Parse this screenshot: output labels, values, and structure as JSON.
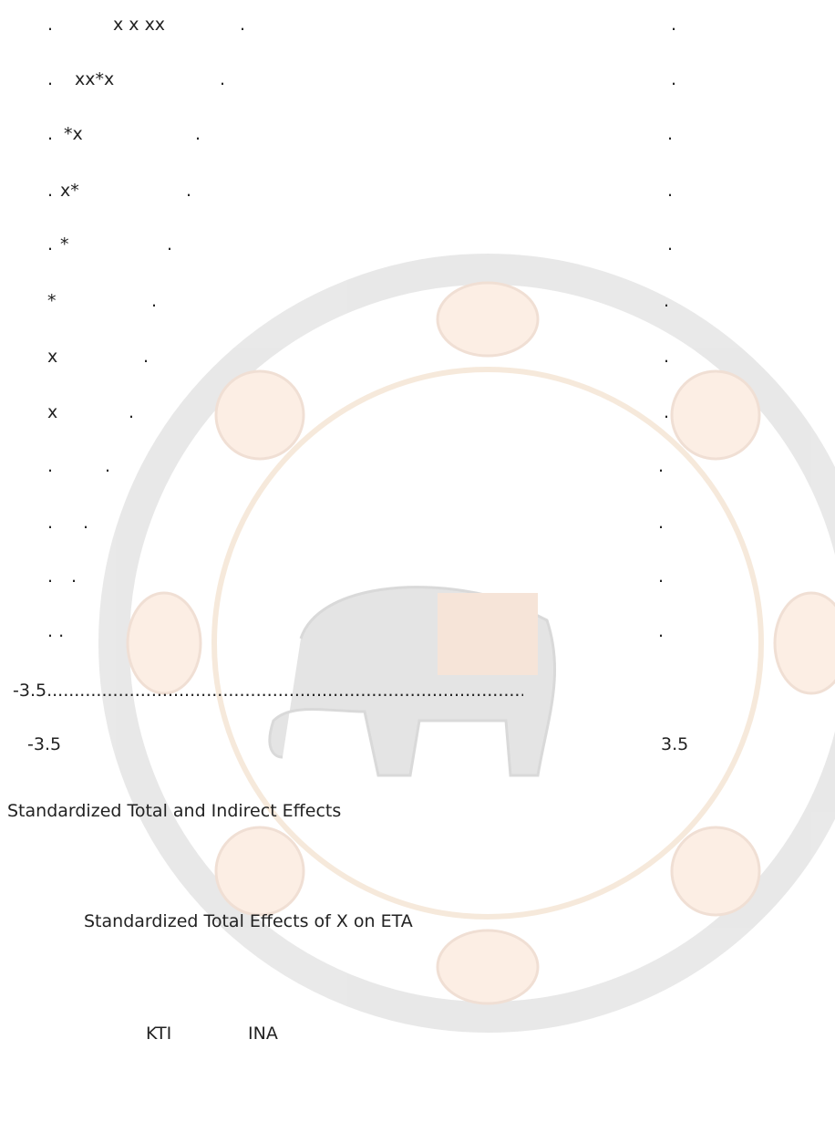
{
  "plot": {
    "rows": [
      [
        ".",
        "x x xx",
        ".",
        "."
      ],
      [
        ".",
        "xx*x",
        ".",
        "."
      ],
      [
        ".",
        "*x",
        ".",
        "."
      ],
      [
        ".",
        "x*",
        ".",
        "."
      ],
      [
        ".",
        "*",
        ".",
        "."
      ],
      [
        "*",
        ".",
        "."
      ],
      [
        "x",
        ".",
        "."
      ],
      [
        "x",
        ".",
        "."
      ],
      [
        ".",
        ".",
        "."
      ],
      [
        ".",
        ".",
        "."
      ],
      [
        ".",
        ".",
        "."
      ],
      [
        ". .",
        "."
      ]
    ],
    "baseline": "-3.5..........................................................................................................",
    "x_labels": [
      "-3.5",
      "3.5"
    ]
  },
  "section_title": "Standardized Total and Indirect Effects",
  "subtitle": "Standardized Total Effects of X on ETA",
  "columns": [
    "KTI",
    "INA"
  ]
}
